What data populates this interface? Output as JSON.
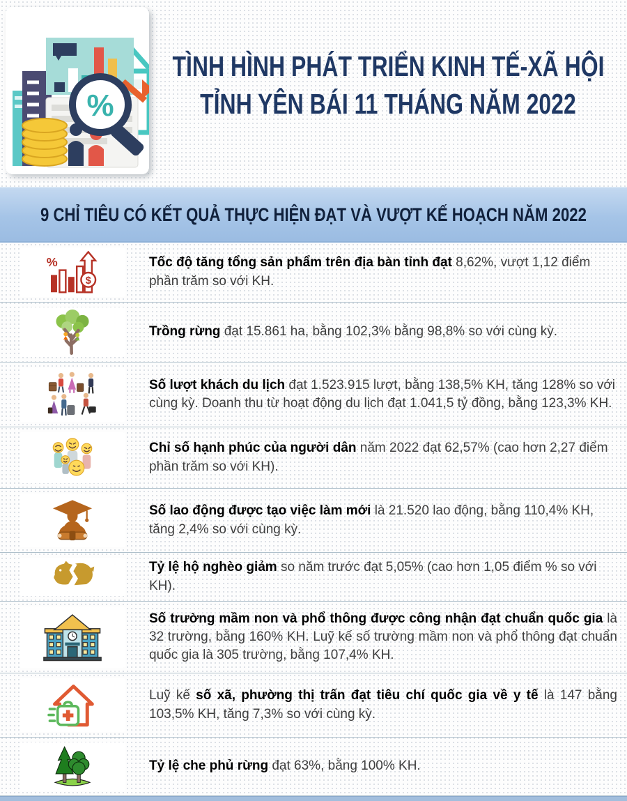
{
  "header": {
    "logo": "economy-analysis-illustration",
    "title_line1": "TÌNH HÌNH PHÁT TRIỂN KINH TẾ-XÃ HỘI",
    "title_line2": "TỈNH YÊN BÁI 11 THÁNG NĂM 2022",
    "title_color": "#1f3864"
  },
  "banner": {
    "text": "9 CHỈ TIÊU CÓ KẾT QUẢ THỰC HIỆN ĐẠT VÀ VƯỢT KẾ HOẠCH NĂM 2022",
    "bg_color": "#a5c4e7",
    "text_color": "#10203b"
  },
  "indicators": [
    {
      "icon": "gdp-growth-icon",
      "justify": false,
      "segments": [
        {
          "text": "Tốc độ tăng tổng sản phẩm trên địa bàn tỉnh đạt ",
          "bold": true
        },
        {
          "text": "8,62%, vượt 1,12 điểm phần trăm so với KH.",
          "bold": false
        }
      ]
    },
    {
      "icon": "forest-planting-icon",
      "justify": false,
      "segments": [
        {
          "text": "Trồng rừng ",
          "bold": true
        },
        {
          "text": "đạt 15.861 ha, bằng 102,3% bằng 98,8% so với cùng kỳ.",
          "bold": false
        }
      ]
    },
    {
      "icon": "tourists-icon",
      "justify": false,
      "segments": [
        {
          "text": "Số lượt khách du lịch ",
          "bold": true
        },
        {
          "text": "đạt 1.523.915 lượt, bằng 138,5% KH, tăng 128% so với cùng kỳ. Doanh thu từ hoạt động du lịch đạt 1.041,5 tỷ đồng, bằng 123,3% KH.",
          "bold": false
        }
      ]
    },
    {
      "icon": "happiness-icon",
      "justify": false,
      "segments": [
        {
          "text": "Chỉ số hạnh phúc của người dân ",
          "bold": true
        },
        {
          "text": "năm 2022 đạt 62,57% (cao hơn 2,27 điểm phần trăm so với KH).",
          "bold": false
        }
      ]
    },
    {
      "icon": "new-jobs-icon",
      "justify": false,
      "segments": [
        {
          "text": "Số lao động được tạo việc làm mới ",
          "bold": true
        },
        {
          "text": "là 21.520 lao động, bằng 110,4% KH, tăng 2,4% so với cùng kỳ.",
          "bold": false
        }
      ]
    },
    {
      "icon": "poverty-reduction-icon",
      "justify": false,
      "segments": [
        {
          "text": "Tỷ lệ hộ nghèo giảm ",
          "bold": true
        },
        {
          "text": "so năm trước đạt 5,05% (cao hơn 1,05 điểm % so với KH).",
          "bold": false
        }
      ]
    },
    {
      "icon": "school-icon",
      "justify": true,
      "segments": [
        {
          "text": "Số trường mầm non và phổ thông được công nhận đạt chuẩn quốc gia ",
          "bold": true
        },
        {
          "text": "là 32 trường, bằng 160% KH. Luỹ kế số trường mầm non và phổ thông đạt chuẩn quốc gia là 305 trường, bằng 107,4% KH.",
          "bold": false
        }
      ]
    },
    {
      "icon": "health-icon",
      "justify": true,
      "segments": [
        {
          "text": "Luỹ kế ",
          "bold": false
        },
        {
          "text": "số xã, phường thị trấn đạt tiêu chí quốc gia về y tế ",
          "bold": true
        },
        {
          "text": "là 147 bằng 103,5% KH, tăng 7,3% so với cùng kỳ.",
          "bold": false
        }
      ]
    },
    {
      "icon": "forest-cover-icon",
      "justify": false,
      "segments": [
        {
          "text": "Tỷ lệ che phủ rừng ",
          "bold": true
        },
        {
          "text": "đạt 63%, bằng 100% KH.",
          "bold": false
        }
      ]
    }
  ],
  "footer": {
    "bar_color": "#a2bedd"
  }
}
